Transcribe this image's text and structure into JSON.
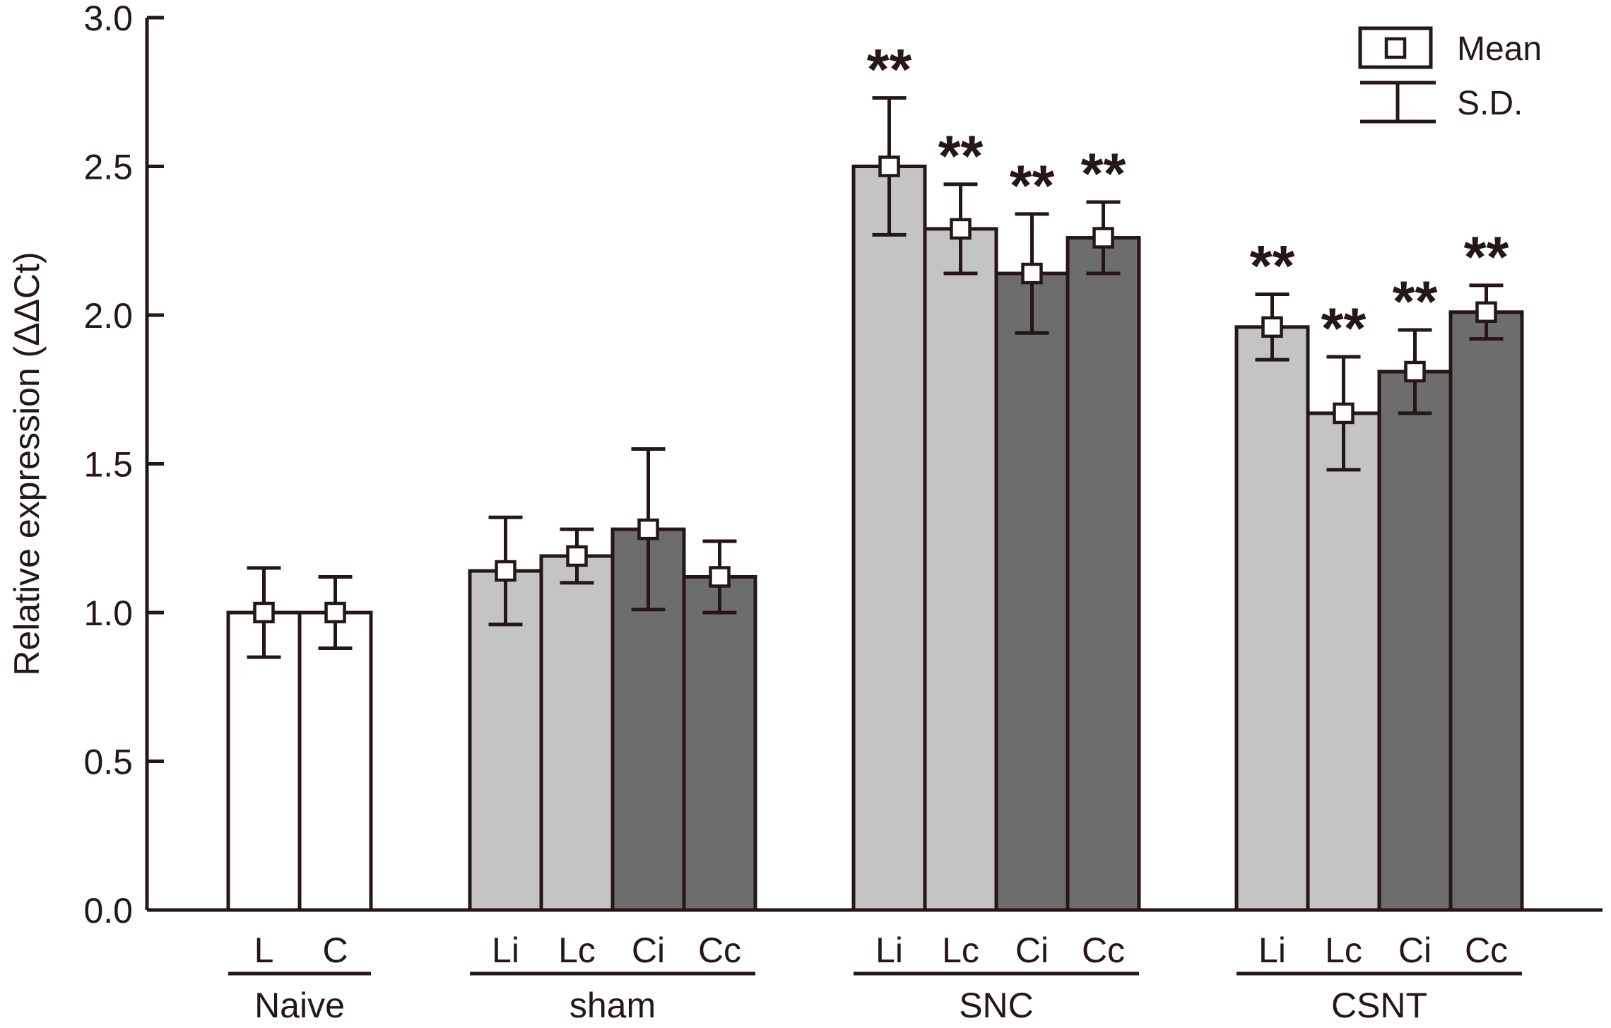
{
  "chart_data": {
    "type": "bar",
    "title": "",
    "xlabel": "",
    "ylabel": "Relative expression (ΔΔCt)",
    "ylim": [
      0,
      3.0
    ],
    "yticks": [
      0.0,
      0.5,
      1.0,
      1.5,
      2.0,
      2.5,
      3.0
    ],
    "ytick_labels": [
      "0.0",
      "0.5",
      "1.0",
      "1.5",
      "2.0",
      "2.5",
      "3.0"
    ],
    "grid": false,
    "legend": {
      "position": "top-right",
      "mean_label": "Mean",
      "sd_label": "S.D."
    },
    "colors": {
      "white": "#ffffff",
      "light": "#c4c4c4",
      "dark": "#6d6d6d",
      "ink": "#231815"
    },
    "groups": [
      {
        "name": "Naive",
        "bars": [
          {
            "label": "L",
            "mean": 1.0,
            "sd": 0.15,
            "fill": "white",
            "sig": ""
          },
          {
            "label": "C",
            "mean": 1.0,
            "sd": 0.12,
            "fill": "white",
            "sig": ""
          }
        ]
      },
      {
        "name": "sham",
        "bars": [
          {
            "label": "Li",
            "mean": 1.14,
            "sd": 0.18,
            "fill": "light",
            "sig": ""
          },
          {
            "label": "Lc",
            "mean": 1.19,
            "sd": 0.09,
            "fill": "light",
            "sig": ""
          },
          {
            "label": "Ci",
            "mean": 1.28,
            "sd": 0.27,
            "fill": "dark",
            "sig": ""
          },
          {
            "label": "Cc",
            "mean": 1.12,
            "sd": 0.12,
            "fill": "dark",
            "sig": ""
          }
        ]
      },
      {
        "name": "SNC",
        "bars": [
          {
            "label": "Li",
            "mean": 2.5,
            "sd": 0.23,
            "fill": "light",
            "sig": "**"
          },
          {
            "label": "Lc",
            "mean": 2.29,
            "sd": 0.15,
            "fill": "light",
            "sig": "**"
          },
          {
            "label": "Ci",
            "mean": 2.14,
            "sd": 0.2,
            "fill": "dark",
            "sig": "**"
          },
          {
            "label": "Cc",
            "mean": 2.26,
            "sd": 0.12,
            "fill": "dark",
            "sig": "**"
          }
        ]
      },
      {
        "name": "CSNT",
        "bars": [
          {
            "label": "Li",
            "mean": 1.96,
            "sd": 0.11,
            "fill": "light",
            "sig": "**"
          },
          {
            "label": "Lc",
            "mean": 1.67,
            "sd": 0.19,
            "fill": "light",
            "sig": "**"
          },
          {
            "label": "Ci",
            "mean": 1.81,
            "sd": 0.14,
            "fill": "dark",
            "sig": "**"
          },
          {
            "label": "Cc",
            "mean": 2.01,
            "sd": 0.09,
            "fill": "dark",
            "sig": "**"
          }
        ]
      }
    ]
  }
}
